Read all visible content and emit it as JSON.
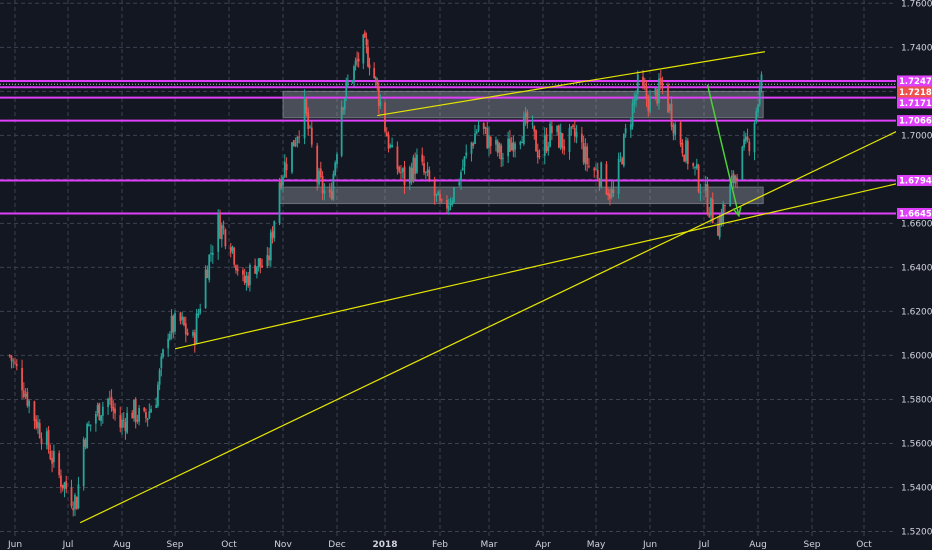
{
  "chart_data": {
    "type": "candlestick",
    "instrument_note": "",
    "x_axis": {
      "ticks": [
        {
          "label": "Jun",
          "date": "2017-06-01"
        },
        {
          "label": "Jul",
          "date": "2017-07-01"
        },
        {
          "label": "Aug",
          "date": "2017-08-01"
        },
        {
          "label": "Sep",
          "date": "2017-09-01"
        },
        {
          "label": "Oct",
          "date": "2017-10-01"
        },
        {
          "label": "Nov",
          "date": "2017-11-01"
        },
        {
          "label": "Dec",
          "date": "2017-12-01"
        },
        {
          "label": "2018",
          "date": "2018-01-01",
          "bold": true
        },
        {
          "label": "Feb",
          "date": "2018-02-01"
        },
        {
          "label": "Mar",
          "date": "2018-03-01"
        },
        {
          "label": "Apr",
          "date": "2018-04-01"
        },
        {
          "label": "May",
          "date": "2018-05-01"
        },
        {
          "label": "Jun",
          "date": "2018-06-01"
        },
        {
          "label": "Jul",
          "date": "2018-07-01"
        },
        {
          "label": "Aug",
          "date": "2018-08-01"
        },
        {
          "label": "Sep",
          "date": "2018-09-01"
        },
        {
          "label": "Oct",
          "date": "2018-10-01"
        }
      ],
      "range": [
        "2017-05-27",
        "2018-10-31"
      ]
    },
    "y_axis": {
      "ticks": [
        "1.52000",
        "1.54000",
        "1.56000",
        "1.58000",
        "1.60000",
        "1.62000",
        "1.64000",
        "1.66000",
        "1.68000",
        "1.70000",
        "1.72000",
        "1.74000",
        "1.76000"
      ],
      "range": [
        1.5175,
        1.7615
      ]
    },
    "grid": true,
    "price_path": [
      [
        "2017-05-29",
        1.6
      ],
      [
        "2017-06-05",
        1.588
      ],
      [
        "2017-06-12",
        1.572
      ],
      [
        "2017-06-19",
        1.56
      ],
      [
        "2017-06-26",
        1.545
      ],
      [
        "2017-07-03",
        1.536
      ],
      [
        "2017-07-06",
        1.534
      ],
      [
        "2017-07-10",
        1.562
      ],
      [
        "2017-07-17",
        1.574
      ],
      [
        "2017-07-24",
        1.58
      ],
      [
        "2017-07-31",
        1.568
      ],
      [
        "2017-08-07",
        1.575
      ],
      [
        "2017-08-14",
        1.57
      ],
      [
        "2017-08-21",
        1.582
      ],
      [
        "2017-08-28",
        1.612
      ],
      [
        "2017-09-04",
        1.615
      ],
      [
        "2017-09-11",
        1.606
      ],
      [
        "2017-09-18",
        1.638
      ],
      [
        "2017-09-25",
        1.66
      ],
      [
        "2017-10-02",
        1.652
      ],
      [
        "2017-10-09",
        1.632
      ],
      [
        "2017-10-16",
        1.642
      ],
      [
        "2017-10-23",
        1.64
      ],
      [
        "2017-10-30",
        1.68
      ],
      [
        "2017-11-06",
        1.695
      ],
      [
        "2017-11-13",
        1.712
      ],
      [
        "2017-11-20",
        1.68
      ],
      [
        "2017-11-27",
        1.67
      ],
      [
        "2017-12-04",
        1.715
      ],
      [
        "2017-12-11",
        1.728
      ],
      [
        "2017-12-18",
        1.74
      ],
      [
        "2017-12-22",
        1.735
      ],
      [
        "2017-12-29",
        1.715
      ],
      [
        "2018-01-05",
        1.69
      ],
      [
        "2018-01-12",
        1.68
      ],
      [
        "2018-01-19",
        1.688
      ],
      [
        "2018-01-26",
        1.678
      ],
      [
        "2018-02-02",
        1.665
      ],
      [
        "2018-02-09",
        1.675
      ],
      [
        "2018-02-16",
        1.69
      ],
      [
        "2018-02-23",
        1.705
      ],
      [
        "2018-03-02",
        1.696
      ],
      [
        "2018-03-09",
        1.69
      ],
      [
        "2018-03-16",
        1.7
      ],
      [
        "2018-03-23",
        1.705
      ],
      [
        "2018-03-30",
        1.692
      ],
      [
        "2018-04-06",
        1.702
      ],
      [
        "2018-04-13",
        1.696
      ],
      [
        "2018-04-20",
        1.7
      ],
      [
        "2018-04-27",
        1.686
      ],
      [
        "2018-05-04",
        1.682
      ],
      [
        "2018-05-11",
        1.672
      ],
      [
        "2018-05-18",
        1.7
      ],
      [
        "2018-05-25",
        1.722
      ],
      [
        "2018-06-01",
        1.715
      ],
      [
        "2018-06-08",
        1.722
      ],
      [
        "2018-06-15",
        1.704
      ],
      [
        "2018-06-22",
        1.69
      ],
      [
        "2018-06-29",
        1.678
      ],
      [
        "2018-07-06",
        1.664
      ],
      [
        "2018-07-09",
        1.66
      ],
      [
        "2018-07-13",
        1.668
      ],
      [
        "2018-07-20",
        1.685
      ],
      [
        "2018-07-27",
        1.698
      ],
      [
        "2018-07-31",
        1.712
      ],
      [
        "2018-08-03",
        1.724
      ]
    ],
    "horizontal_levels": [
      {
        "label": "1.72471",
        "value": 1.72471,
        "color": "#e040fb",
        "badge": true
      },
      {
        "label": "1.72184",
        "value": 1.72184,
        "color": "#e040fb",
        "badge": true,
        "badge_color": "#ef5350"
      },
      {
        "label": "1.71714",
        "value": 1.71714,
        "color": "#e040fb",
        "badge": true
      },
      {
        "label": "1.70669",
        "value": 1.70669,
        "color": "#e040fb",
        "badge": true
      },
      {
        "label": "1.67948",
        "value": 1.67948,
        "color": "#e040fb",
        "badge": true
      },
      {
        "label": "1.66450",
        "value": 1.6645,
        "color": "#e040fb",
        "badge": true
      }
    ],
    "zones": [
      {
        "from": "2017-11-01",
        "to": "2018-08-04",
        "y_top": 1.72,
        "y_bottom": 1.708,
        "color": "#b2b5be"
      },
      {
        "from": "2017-10-30",
        "to": "2018-08-04",
        "y_top": 1.6765,
        "y_bottom": 1.669,
        "color": "#b2b5be"
      }
    ],
    "trendlines": [
      {
        "from": [
          "2017-07-08",
          1.524
        ],
        "to": [
          "2018-10-31",
          1.706
        ],
        "color": "#e6e600"
      },
      {
        "from": [
          "2017-09-01",
          1.603
        ],
        "to": [
          "2018-10-31",
          1.68
        ],
        "color": "#e6e600"
      },
      {
        "from": [
          "2017-12-27",
          1.709
        ],
        "to": [
          "2018-08-05",
          1.738
        ],
        "color": "#e6e600"
      }
    ],
    "arrow": {
      "from": [
        "2018-07-03",
        1.723
      ],
      "to": [
        "2018-07-21",
        1.6635
      ],
      "color": "#4cd13a"
    }
  }
}
